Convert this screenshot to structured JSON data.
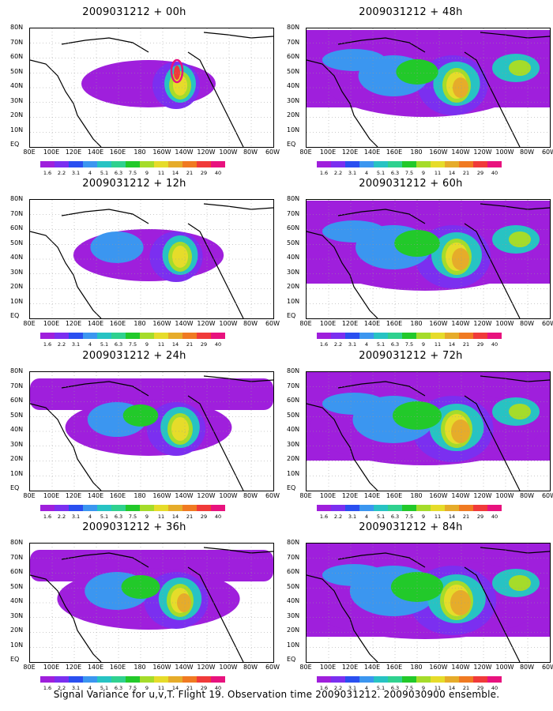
{
  "panels": [
    {
      "title": "2009031212 + 00h",
      "level": 0
    },
    {
      "title": "2009031212 + 48h",
      "level": 4
    },
    {
      "title": "2009031212 + 12h",
      "level": 1
    },
    {
      "title": "2009031212 + 60h",
      "level": 5
    },
    {
      "title": "2009031212 + 24h",
      "level": 2
    },
    {
      "title": "2009031212 + 72h",
      "level": 6
    },
    {
      "title": "2009031212 + 36h",
      "level": 3
    },
    {
      "title": "2009031212 + 84h",
      "level": 7
    }
  ],
  "lat_labels": [
    "80N",
    "70N",
    "60N",
    "50N",
    "40N",
    "30N",
    "20N",
    "10N",
    "EQ"
  ],
  "lon_labels": [
    "80E",
    "100E",
    "120E",
    "140E",
    "160E",
    "180",
    "160W",
    "140W",
    "120W",
    "100W",
    "80W",
    "60W"
  ],
  "colorbar": {
    "colors": [
      "#9f1fdc",
      "#7b2ff0",
      "#2a4ff0",
      "#3b96f0",
      "#27c3c3",
      "#2fd18f",
      "#22c92a",
      "#a5dc2a",
      "#e6dc2a",
      "#e6ac2a",
      "#f07a22",
      "#f03a3a",
      "#e8127e"
    ],
    "labels": [
      "1.6",
      "2.2",
      "3.1",
      "4",
      "5.1",
      "6.3",
      "7.5",
      "9",
      "11",
      "14",
      "21",
      "29",
      "40"
    ]
  },
  "footer": "Signal Variance for u,v,T. Flight 19. Observation time 2009031212. 2009030900 ensemble."
}
